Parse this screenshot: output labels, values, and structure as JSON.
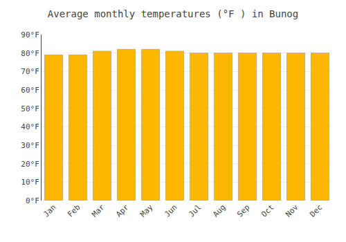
{
  "chart_data": {
    "type": "bar",
    "title": "Average monthly temperatures (°F ) in Bunog",
    "categories": [
      "Jan",
      "Feb",
      "Mar",
      "Apr",
      "May",
      "Jun",
      "Jul",
      "Aug",
      "Sep",
      "Oct",
      "Nov",
      "Dec"
    ],
    "values": [
      79,
      79,
      81,
      82,
      82,
      81,
      80,
      80,
      80,
      80,
      80,
      80
    ],
    "color": "#FFB800",
    "ylim": [
      0,
      90
    ],
    "yticks": [
      {
        "value": 0,
        "label": "0°F"
      },
      {
        "value": 10,
        "label": "10°F"
      },
      {
        "value": 20,
        "label": "20°F"
      },
      {
        "value": 30,
        "label": "30°F"
      },
      {
        "value": 40,
        "label": "40°F"
      },
      {
        "value": 50,
        "label": "50°F"
      },
      {
        "value": 60,
        "label": "60°F"
      },
      {
        "value": 70,
        "label": "70°F"
      },
      {
        "value": 80,
        "label": "80°F"
      },
      {
        "value": 90,
        "label": "90°F"
      }
    ],
    "grid": true
  }
}
